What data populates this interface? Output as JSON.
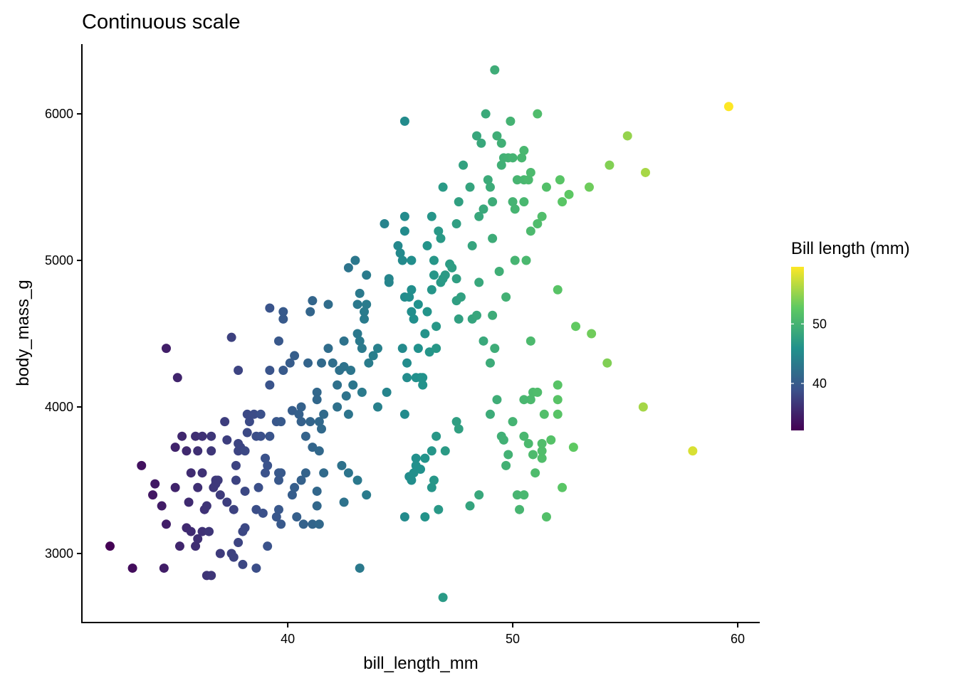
{
  "chart_data": {
    "type": "scatter",
    "title": "Continuous scale",
    "xlabel": "bill_length_mm",
    "ylabel": "body_mass_g",
    "xlim": [
      30.85,
      60.98
    ],
    "ylim": [
      2529,
      6476
    ],
    "xticks": [
      40,
      50,
      60
    ],
    "yticks": [
      3000,
      4000,
      5000,
      6000
    ],
    "grid": false,
    "legend": {
      "title": "Bill length (mm)",
      "placement": "right",
      "type": "colorbar",
      "range": [
        32.1,
        59.6
      ],
      "ticks": [
        40,
        50
      ],
      "palette": [
        "#440154",
        "#3b528b",
        "#21918c",
        "#5ec962",
        "#fde725"
      ]
    },
    "color_by": "x",
    "points": [
      [
        32.1,
        3050
      ],
      [
        33.1,
        2900
      ],
      [
        33.5,
        3600
      ],
      [
        34.0,
        3400
      ],
      [
        34.1,
        3475
      ],
      [
        34.4,
        3325
      ],
      [
        34.5,
        2900
      ],
      [
        34.6,
        3200
      ],
      [
        34.6,
        4400
      ],
      [
        35.0,
        3725
      ],
      [
        35.0,
        3450
      ],
      [
        35.1,
        4200
      ],
      [
        35.2,
        3050
      ],
      [
        35.3,
        3800
      ],
      [
        35.5,
        3700
      ],
      [
        35.6,
        3350
      ],
      [
        35.7,
        3550
      ],
      [
        35.5,
        3175
      ],
      [
        35.7,
        3150
      ],
      [
        35.9,
        3050
      ],
      [
        36.0,
        3100
      ],
      [
        35.9,
        3800
      ],
      [
        36.0,
        3700
      ],
      [
        36.0,
        3450
      ],
      [
        36.2,
        3550
      ],
      [
        36.2,
        3800
      ],
      [
        36.3,
        3300
      ],
      [
        36.4,
        3325
      ],
      [
        36.2,
        3150
      ],
      [
        36.4,
        2850
      ],
      [
        36.6,
        2850
      ],
      [
        36.5,
        3150
      ],
      [
        36.6,
        3700
      ],
      [
        36.6,
        3800
      ],
      [
        36.7,
        3450
      ],
      [
        36.8,
        3500
      ],
      [
        36.9,
        3500
      ],
      [
        37.0,
        3400
      ],
      [
        36.8,
        3475
      ],
      [
        37.2,
        3900
      ],
      [
        37.3,
        3775
      ],
      [
        37.0,
        3000
      ],
      [
        37.3,
        3350
      ],
      [
        37.5,
        3000
      ],
      [
        37.6,
        2975
      ],
      [
        37.5,
        4475
      ],
      [
        37.6,
        3300
      ],
      [
        37.7,
        3600
      ],
      [
        37.8,
        3750
      ],
      [
        37.8,
        3700
      ],
      [
        37.8,
        3075
      ],
      [
        37.7,
        3500
      ],
      [
        37.8,
        4250
      ],
      [
        37.9,
        3725
      ],
      [
        38.0,
        2925
      ],
      [
        38.0,
        3150
      ],
      [
        38.1,
        3175
      ],
      [
        38.1,
        3425
      ],
      [
        38.1,
        3700
      ],
      [
        38.2,
        3825
      ],
      [
        38.2,
        3950
      ],
      [
        38.3,
        3900
      ],
      [
        38.5,
        3950
      ],
      [
        38.6,
        3800
      ],
      [
        38.6,
        3300
      ],
      [
        38.6,
        2900
      ],
      [
        38.7,
        3450
      ],
      [
        38.8,
        3950
      ],
      [
        38.8,
        3800
      ],
      [
        38.9,
        3275
      ],
      [
        39.0,
        3650
      ],
      [
        39.1,
        3600
      ],
      [
        39.0,
        3550
      ],
      [
        39.1,
        3050
      ],
      [
        39.2,
        3800
      ],
      [
        39.2,
        4675
      ],
      [
        39.2,
        4250
      ],
      [
        39.2,
        4150
      ],
      [
        39.5,
        3250
      ],
      [
        39.6,
        3300
      ],
      [
        39.6,
        3500
      ],
      [
        39.5,
        3900
      ],
      [
        39.6,
        4450
      ],
      [
        39.6,
        3550
      ],
      [
        39.7,
        3200
      ],
      [
        39.7,
        3900
      ],
      [
        39.8,
        4600
      ],
      [
        39.8,
        4250
      ],
      [
        39.8,
        4650
      ],
      [
        39.7,
        3550
      ],
      [
        40.1,
        4300
      ],
      [
        40.2,
        3975
      ],
      [
        40.2,
        3400
      ],
      [
        40.3,
        3450
      ],
      [
        40.3,
        4350
      ],
      [
        40.4,
        3250
      ],
      [
        40.5,
        3950
      ],
      [
        40.6,
        3900
      ],
      [
        40.6,
        4000
      ],
      [
        40.6,
        3500
      ],
      [
        40.7,
        3200
      ],
      [
        40.8,
        3550
      ],
      [
        40.8,
        3800
      ],
      [
        40.9,
        4300
      ],
      [
        41.0,
        3900
      ],
      [
        41.0,
        4650
      ],
      [
        41.1,
        3725
      ],
      [
        41.1,
        4725
      ],
      [
        41.1,
        3200
      ],
      [
        41.3,
        3325
      ],
      [
        41.3,
        4100
      ],
      [
        41.4,
        3700
      ],
      [
        41.4,
        3200
      ],
      [
        41.3,
        3425
      ],
      [
        41.3,
        4050
      ],
      [
        41.4,
        3900
      ],
      [
        41.5,
        4300
      ],
      [
        41.5,
        3850
      ],
      [
        41.6,
        3950
      ],
      [
        41.6,
        3550
      ],
      [
        41.8,
        4400
      ],
      [
        42.0,
        4300
      ],
      [
        41.8,
        4700
      ],
      [
        42.2,
        4000
      ],
      [
        42.2,
        4150
      ],
      [
        42.3,
        4250
      ],
      [
        42.5,
        4450
      ],
      [
        42.5,
        4275
      ],
      [
        42.7,
        3550
      ],
      [
        42.8,
        4250
      ],
      [
        42.9,
        4150
      ],
      [
        42.4,
        3600
      ],
      [
        42.5,
        3350
      ],
      [
        43.1,
        4500
      ],
      [
        42.6,
        4075
      ],
      [
        42.7,
        3950
      ],
      [
        43.3,
        4100
      ],
      [
        42.7,
        4950
      ],
      [
        43.0,
        5000
      ],
      [
        43.2,
        4775
      ],
      [
        43.1,
        4700
      ],
      [
        43.4,
        4650
      ],
      [
        43.5,
        4700
      ],
      [
        43.5,
        4900
      ],
      [
        43.2,
        4450
      ],
      [
        43.3,
        4400
      ],
      [
        43.4,
        4600
      ],
      [
        43.6,
        4300
      ],
      [
        43.8,
        4350
      ],
      [
        44.0,
        4400
      ],
      [
        43.2,
        2900
      ],
      [
        43.5,
        3400
      ],
      [
        43.1,
        3500
      ],
      [
        44.0,
        4000
      ],
      [
        44.4,
        4100
      ],
      [
        44.3,
        5250
      ],
      [
        44.5,
        4850
      ],
      [
        44.5,
        4875
      ],
      [
        44.9,
        5100
      ],
      [
        45.0,
        5050
      ],
      [
        45.1,
        5000
      ],
      [
        45.2,
        5300
      ],
      [
        45.2,
        5200
      ],
      [
        45.2,
        4750
      ],
      [
        45.1,
        4400
      ],
      [
        45.2,
        3950
      ],
      [
        45.2,
        5950
      ],
      [
        45.3,
        4300
      ],
      [
        45.3,
        4200
      ],
      [
        45.4,
        4750
      ],
      [
        45.5,
        4800
      ],
      [
        45.5,
        4650
      ],
      [
        45.5,
        5000
      ],
      [
        45.6,
        4600
      ],
      [
        45.7,
        4200
      ],
      [
        45.8,
        4700
      ],
      [
        45.8,
        4400
      ],
      [
        45.9,
        4200
      ],
      [
        46.0,
        4150
      ],
      [
        46.0,
        4200
      ],
      [
        46.1,
        4500
      ],
      [
        46.2,
        5100
      ],
      [
        46.2,
        4650
      ],
      [
        46.3,
        4375
      ],
      [
        46.4,
        4800
      ],
      [
        46.4,
        5300
      ],
      [
        46.5,
        5000
      ],
      [
        46.5,
        4900
      ],
      [
        46.6,
        4550
      ],
      [
        46.6,
        4400
      ],
      [
        46.7,
        5200
      ],
      [
        46.8,
        4850
      ],
      [
        46.8,
        5150
      ],
      [
        46.9,
        4875
      ],
      [
        46.9,
        5500
      ],
      [
        47.0,
        4900
      ],
      [
        47.2,
        4975
      ],
      [
        47.3,
        4950
      ],
      [
        47.5,
        4875
      ],
      [
        47.5,
        4725
      ],
      [
        47.6,
        4600
      ],
      [
        47.7,
        4750
      ],
      [
        47.8,
        5650
      ],
      [
        47.5,
        5250
      ],
      [
        47.6,
        5400
      ],
      [
        48.1,
        5500
      ],
      [
        48.2,
        5100
      ],
      [
        48.2,
        4600
      ],
      [
        48.4,
        4625
      ],
      [
        48.5,
        4850
      ],
      [
        48.5,
        5300
      ],
      [
        48.4,
        5850
      ],
      [
        48.6,
        5800
      ],
      [
        48.7,
        5350
      ],
      [
        48.8,
        6000
      ],
      [
        48.7,
        4450
      ],
      [
        48.9,
        5550
      ],
      [
        49.0,
        5500
      ],
      [
        49.1,
        5400
      ],
      [
        49.1,
        5150
      ],
      [
        49.1,
        4625
      ],
      [
        49.2,
        6300
      ],
      [
        49.2,
        4400
      ],
      [
        49.3,
        5850
      ],
      [
        49.4,
        4925
      ],
      [
        49.5,
        5650
      ],
      [
        49.5,
        5800
      ],
      [
        49.6,
        5700
      ],
      [
        49.7,
        4750
      ],
      [
        49.8,
        5700
      ],
      [
        49.9,
        5950
      ],
      [
        50.0,
        5700
      ],
      [
        50.0,
        5400
      ],
      [
        50.1,
        5350
      ],
      [
        50.2,
        5550
      ],
      [
        50.1,
        5000
      ],
      [
        50.4,
        5700
      ],
      [
        50.5,
        5550
      ],
      [
        50.5,
        5750
      ],
      [
        50.5,
        5400
      ],
      [
        50.6,
        5000
      ],
      [
        50.7,
        5550
      ],
      [
        50.8,
        5600
      ],
      [
        50.8,
        5200
      ],
      [
        51.1,
        6000
      ],
      [
        51.1,
        5250
      ],
      [
        51.3,
        5300
      ],
      [
        51.5,
        5500
      ],
      [
        52.0,
        4800
      ],
      [
        52.1,
        5550
      ],
      [
        52.2,
        5400
      ],
      [
        52.5,
        5450
      ],
      [
        53.4,
        5500
      ],
      [
        54.3,
        5650
      ],
      [
        55.1,
        5850
      ],
      [
        55.9,
        5600
      ],
      [
        59.6,
        6050
      ],
      [
        49.0,
        4300
      ],
      [
        50.8,
        4450
      ],
      [
        45.2,
        3250
      ],
      [
        45.4,
        3525
      ],
      [
        45.5,
        3500
      ],
      [
        45.6,
        3550
      ],
      [
        45.7,
        3650
      ],
      [
        45.7,
        3600
      ],
      [
        45.9,
        3575
      ],
      [
        46.1,
        3250
      ],
      [
        46.1,
        3650
      ],
      [
        46.4,
        3700
      ],
      [
        46.4,
        3450
      ],
      [
        46.5,
        3500
      ],
      [
        46.6,
        3800
      ],
      [
        46.7,
        3300
      ],
      [
        46.9,
        2700
      ],
      [
        47.0,
        3700
      ],
      [
        47.5,
        3900
      ],
      [
        47.6,
        3850
      ],
      [
        48.1,
        3325
      ],
      [
        48.5,
        3400
      ],
      [
        49.0,
        3950
      ],
      [
        49.3,
        4050
      ],
      [
        49.5,
        3800
      ],
      [
        49.6,
        3775
      ],
      [
        49.7,
        3600
      ],
      [
        49.8,
        3675
      ],
      [
        50.0,
        3900
      ],
      [
        50.2,
        3400
      ],
      [
        50.3,
        3300
      ],
      [
        50.5,
        3400
      ],
      [
        50.5,
        3800
      ],
      [
        50.7,
        3750
      ],
      [
        50.8,
        4050
      ],
      [
        50.9,
        4100
      ],
      [
        50.9,
        3675
      ],
      [
        51.0,
        3550
      ],
      [
        51.1,
        4100
      ],
      [
        51.3,
        3650
      ],
      [
        51.3,
        3700
      ],
      [
        51.3,
        3750
      ],
      [
        51.4,
        3950
      ],
      [
        51.5,
        3250
      ],
      [
        51.7,
        3775
      ],
      [
        52.0,
        4150
      ],
      [
        52.0,
        4050
      ],
      [
        52.0,
        3950
      ],
      [
        52.2,
        3450
      ],
      [
        52.7,
        3725
      ],
      [
        52.8,
        4550
      ],
      [
        53.5,
        4500
      ],
      [
        54.2,
        4300
      ],
      [
        55.8,
        4000
      ],
      [
        58.0,
        3700
      ],
      [
        50.5,
        4050
      ]
    ]
  }
}
